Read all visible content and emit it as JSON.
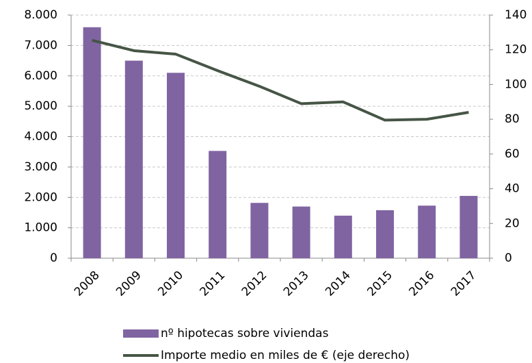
{
  "chart_data": {
    "type": "bar",
    "categories": [
      "2008",
      "2009",
      "2010",
      "2011",
      "2012",
      "2013",
      "2014",
      "2015",
      "2016",
      "2017"
    ],
    "series": [
      {
        "name": "nº hipotecas sobre viviendas",
        "type": "bar",
        "color": "#8064a2",
        "values": [
          7600,
          6500,
          6100,
          3530,
          1820,
          1700,
          1400,
          1580,
          1730,
          2050
        ]
      },
      {
        "name": "Importe medio en miles de € (eje derecho)",
        "type": "line",
        "axis": "y2",
        "color": "#465546",
        "values": [
          125.5,
          119.5,
          117.5,
          108,
          99,
          89,
          90,
          79.5,
          80,
          84
        ]
      }
    ],
    "ylim": [
      0,
      8000
    ],
    "yticks": [
      {
        "value": 0,
        "label": "0"
      },
      {
        "value": 1000,
        "label": "1.000"
      },
      {
        "value": 2000,
        "label": "2.000"
      },
      {
        "value": 3000,
        "label": "3.000"
      },
      {
        "value": 4000,
        "label": "4.000"
      },
      {
        "value": 5000,
        "label": "5.000"
      },
      {
        "value": 6000,
        "label": "6.000"
      },
      {
        "value": 7000,
        "label": "7.000"
      },
      {
        "value": 8000,
        "label": "8.000"
      }
    ],
    "y2lim": [
      0,
      140
    ],
    "y2ticks": [
      0,
      20,
      40,
      60,
      80,
      100,
      120,
      140
    ],
    "grid": true,
    "legend": "bottom"
  }
}
